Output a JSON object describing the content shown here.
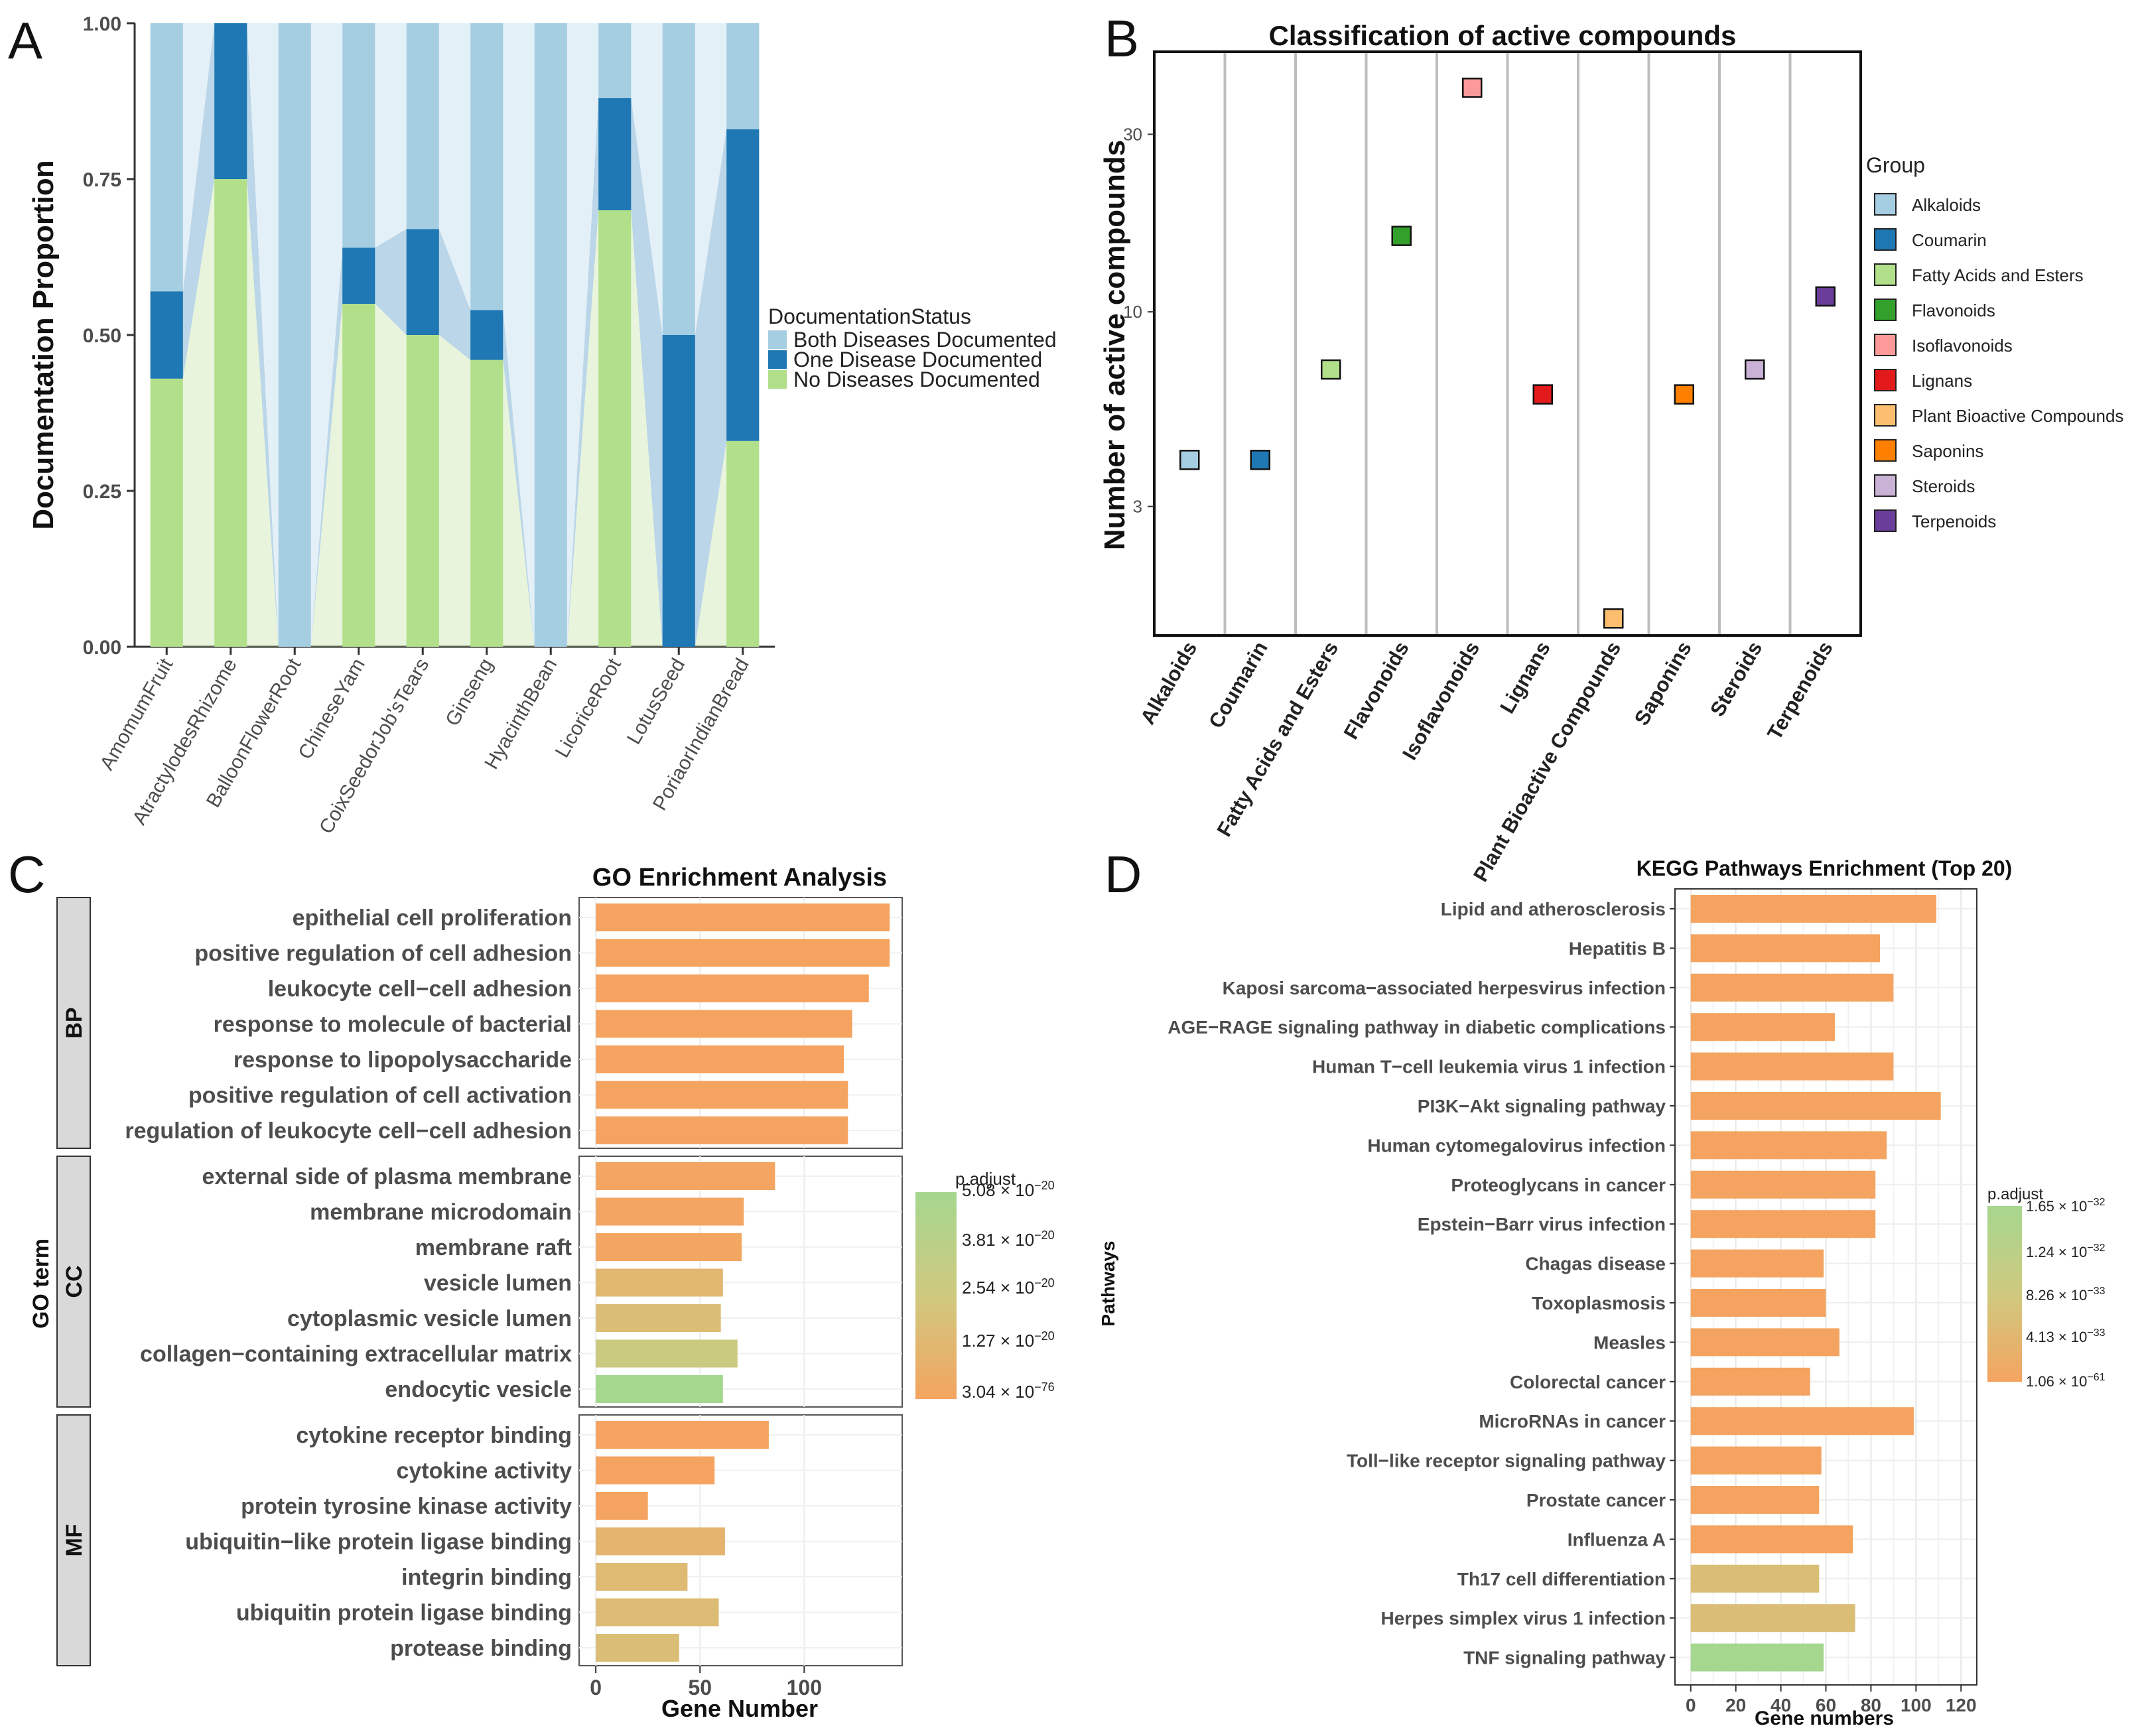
{
  "panel_labels": [
    "A",
    "B",
    "C",
    "D"
  ],
  "chart_data": [
    {
      "id": "A",
      "type": "bar",
      "stacked": true,
      "categories": [
        "AmomumFruit",
        "AtractylodesRhizome",
        "BalloonFlowerRoot",
        "ChineseYam",
        "CoixSeedorJob'sTears",
        "Ginseng",
        "HyacinthBean",
        "LicoriceRoot",
        "LotusSeed",
        "PoriaorIndianBread"
      ],
      "series": [
        {
          "name": "No Diseases Documented",
          "color": "#b2df8a",
          "values": [
            0.43,
            0.75,
            0.0,
            0.55,
            0.5,
            0.46,
            0.0,
            0.7,
            0.0,
            0.33
          ]
        },
        {
          "name": "One Disease Documented",
          "color": "#1f78b4",
          "values": [
            0.14,
            0.25,
            0.0,
            0.09,
            0.17,
            0.08,
            0.0,
            0.18,
            0.5,
            0.5
          ]
        },
        {
          "name": "Both Diseases Documented",
          "color": "#a6cee3",
          "values": [
            0.43,
            0.0,
            1.0,
            0.36,
            0.33,
            0.46,
            1.0,
            0.12,
            0.5,
            0.17
          ]
        }
      ],
      "ylabel": "Documentation Proportion",
      "ylim": [
        0,
        1
      ],
      "yticks": [
        "0.00",
        "0.25",
        "0.50",
        "0.75",
        "1.00"
      ],
      "legend_title": "DocumentationStatus",
      "legend": [
        "Both Diseases Documented",
        "One Disease Documented",
        "No Diseases Documented"
      ],
      "legend_position": "right"
    },
    {
      "id": "B",
      "type": "scatter",
      "title": "Classification of active compounds",
      "categories": [
        "Alkaloids",
        "Coumarin",
        "Fatty Acids and Esters",
        "Flavonoids",
        "Isoflavonoids",
        "Lignans",
        "Plant Bioactive Compounds",
        "Saponins",
        "Steroids",
        "Terpenoids"
      ],
      "values": [
        4,
        4,
        7,
        16,
        40,
        6,
        1.5,
        6,
        7,
        11
      ],
      "colors": [
        "#a6cee3",
        "#1f78b4",
        "#b2df8a",
        "#33a02c",
        "#fb9a99",
        "#e31a1c",
        "#fdbf6f",
        "#ff7f00",
        "#cab2d6",
        "#6a3d9a"
      ],
      "yscale": "log",
      "ylim": [
        1.35,
        50
      ],
      "yticks": [
        "3",
        "10",
        "30"
      ],
      "ylabel": "Number of active compounds",
      "legend_title": "Group",
      "legend_position": "right"
    },
    {
      "id": "C",
      "type": "bar",
      "orientation": "horizontal",
      "title": "GO Enrichment Analysis",
      "xlabel": "Gene Number",
      "ylabel": "GO term",
      "xlim": [
        -8,
        147
      ],
      "xticks": [
        "0",
        "50",
        "100"
      ],
      "facets": [
        {
          "label": "BP",
          "terms": [
            "epithelial cell proliferation",
            "positive regulation of cell adhesion",
            "leukocyte cell−cell adhesion",
            "response to molecule of bacterial",
            "response to lipopolysaccharide",
            "positive regulation of cell activation",
            "regulation of leukocyte cell−cell adhesion"
          ],
          "values": [
            141,
            141,
            131,
            123,
            119,
            121,
            121
          ],
          "p_frac": [
            0,
            0,
            0,
            0,
            0,
            0,
            0
          ]
        },
        {
          "label": "CC",
          "terms": [
            "external side of plasma membrane",
            "membrane microdomain",
            "membrane raft",
            "vesicle lumen",
            "cytoplasmic vesicle lumen",
            "collagen−containing extracellular matrix",
            "endocytic vesicle"
          ],
          "values": [
            86,
            71,
            70,
            61,
            60,
            68,
            61
          ],
          "p_frac": [
            0.02,
            0.03,
            0.03,
            0.25,
            0.35,
            0.55,
            1.0
          ]
        },
        {
          "label": "MF",
          "terms": [
            "cytokine receptor binding",
            "cytokine activity",
            "protein tyrosine kinase activity",
            "ubiquitin−like protein ligase binding",
            "integrin binding",
            "ubiquitin protein ligase binding",
            "protease binding"
          ],
          "values": [
            83,
            57,
            25,
            62,
            44,
            59,
            40
          ],
          "p_frac": [
            0.0,
            0.0,
            0.0,
            0.22,
            0.3,
            0.32,
            0.35
          ]
        }
      ],
      "colorbar": {
        "title": "p.adjust",
        "labels": [
          "5.08 × 10",
          "3.81 × 10",
          "2.54 × 10",
          "1.27 × 10",
          "3.04 × 10"
        ],
        "exponents": [
          "−20",
          "−20",
          "−20",
          "−20",
          "−76"
        ],
        "colors": [
          "#f4a460",
          "#cfc97f",
          "#a6d78f"
        ]
      }
    },
    {
      "id": "D",
      "type": "bar",
      "orientation": "horizontal",
      "title": "KEGG Pathways Enrichment (Top 20)",
      "xlabel": "Gene numbers",
      "ylabel": "Pathways",
      "xlim": [
        -7,
        127
      ],
      "xticks": [
        "0",
        "20",
        "40",
        "60",
        "80",
        "100",
        "120"
      ],
      "categories": [
        "Lipid and atherosclerosis",
        "Hepatitis B",
        "Kaposi sarcoma−associated herpesvirus infection",
        "AGE−RAGE signaling pathway in diabetic complications",
        "Human T−cell leukemia virus 1 infection",
        "PI3K−Akt signaling pathway",
        "Human cytomegalovirus infection",
        "Proteoglycans in cancer",
        "Epstein−Barr virus infection",
        "Chagas disease",
        "Toxoplasmosis",
        "Measles",
        "Colorectal cancer",
        "MicroRNAs in cancer",
        "Toll−like receptor signaling pathway",
        "Prostate cancer",
        "Influenza A",
        "Th17 cell differentiation",
        "Herpes simplex virus 1 infection",
        "TNF signaling pathway"
      ],
      "values": [
        109,
        84,
        90,
        64,
        90,
        111,
        87,
        82,
        82,
        59,
        60,
        66,
        53,
        99,
        58,
        57,
        72,
        57,
        73,
        59
      ],
      "p_frac": [
        0,
        0,
        0,
        0,
        0,
        0,
        0,
        0,
        0,
        0,
        0,
        0,
        0,
        0,
        0,
        0,
        0,
        0.35,
        0.35,
        1.0
      ],
      "colorbar": {
        "title": "p.adjust",
        "labels": [
          "1.65 × 10",
          "1.24 × 10",
          "8.26 × 10",
          "4.13 × 10",
          "1.06 × 10"
        ],
        "exponents": [
          "−32",
          "−32",
          "−33",
          "−33",
          "−61"
        ],
        "colors": [
          "#f4a460",
          "#cfc97f",
          "#a6d78f"
        ]
      }
    }
  ]
}
